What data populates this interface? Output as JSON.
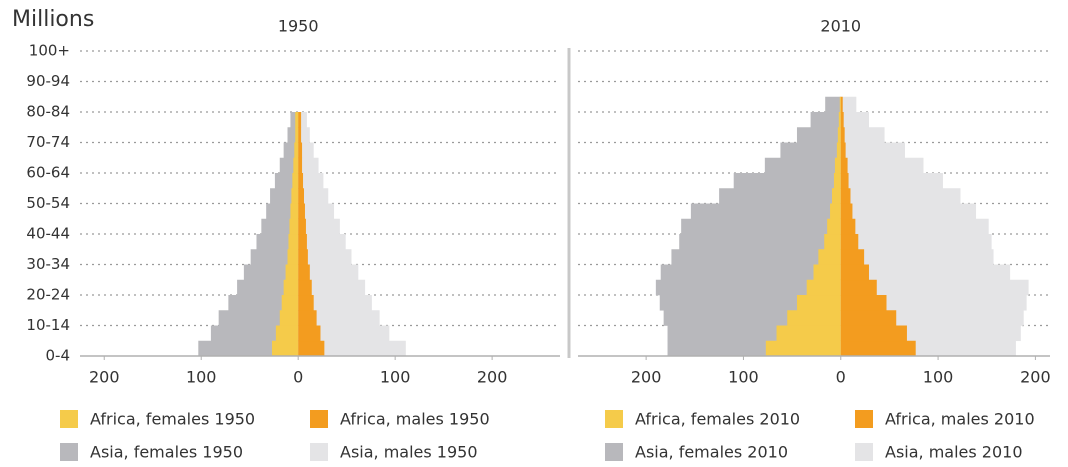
{
  "chart_data": [
    {
      "type": "bar",
      "orientation": "horizontal",
      "title": "1950",
      "unit_label": "Millions",
      "categories": [
        "0-4",
        null,
        "10-14",
        null,
        "20-24",
        null,
        "30-34",
        null,
        "40-44",
        null,
        "50-54",
        null,
        "60-64",
        null,
        "70-74",
        null,
        "80-84",
        null,
        "90-94",
        null,
        "100+"
      ],
      "xlim": [
        -225,
        270
      ],
      "xticks": [
        {
          "value": -200,
          "label": "200"
        },
        {
          "value": -100,
          "label": "100"
        },
        0,
        100,
        200
      ],
      "grid": true,
      "series": [
        {
          "name": "Africa, females 1950",
          "color": "#f5cb4a",
          "values": [
            -27,
            -23,
            -19,
            -17,
            -15,
            -13,
            -11,
            -10,
            -9,
            -8,
            -7,
            -6,
            -5,
            -4,
            -3,
            -3,
            0,
            0,
            0,
            0,
            0
          ]
        },
        {
          "name": "Africa, males 1950",
          "color": "#f39c1f",
          "values": [
            27,
            23,
            19,
            16,
            14,
            12,
            10,
            9,
            8,
            7,
            6,
            5,
            4,
            4,
            3,
            3,
            0,
            0,
            0,
            0,
            0
          ]
        },
        {
          "name": "Asia, females 1950",
          "color": "#b8b8bc",
          "values": [
            -103,
            -90,
            -82,
            -72,
            -63,
            -56,
            -49,
            -43,
            -38,
            -33,
            -29,
            -24,
            -19,
            -15,
            -11,
            -8,
            0,
            0,
            0,
            0,
            0
          ]
        },
        {
          "name": "Asia, males 1950",
          "color": "#e4e4e6",
          "values": [
            111,
            94,
            84,
            76,
            69,
            62,
            55,
            49,
            43,
            37,
            31,
            26,
            21,
            16,
            12,
            9,
            0,
            0,
            0,
            0,
            0
          ]
        }
      ]
    },
    {
      "type": "bar",
      "orientation": "horizontal",
      "title": "2010",
      "xlim": [
        -270,
        215
      ],
      "xticks": [
        {
          "value": -200,
          "label": "200"
        },
        {
          "value": -100,
          "label": "100"
        },
        0,
        100,
        200
      ],
      "grid": true,
      "series": [
        {
          "name": "Africa, females 2010",
          "color": "#f5cb4a",
          "values": [
            -77,
            -66,
            -55,
            -45,
            -35,
            -28,
            -23,
            -17,
            -14,
            -11,
            -9,
            -7,
            -6,
            -4,
            -3,
            -2,
            -1,
            0,
            0,
            0,
            0
          ]
        },
        {
          "name": "Africa, males 2010",
          "color": "#f39c1f",
          "values": [
            77,
            68,
            57,
            47,
            37,
            29,
            24,
            18,
            15,
            12,
            10,
            8,
            7,
            5,
            4,
            3,
            2,
            0,
            0,
            0,
            0
          ]
        },
        {
          "name": "Asia, females 2010",
          "color": "#b8b8bc",
          "values": [
            -178,
            -178,
            -182,
            -186,
            -190,
            -185,
            -174,
            -166,
            -164,
            -154,
            -125,
            -110,
            -78,
            -62,
            -45,
            -31,
            -16,
            0,
            0,
            0,
            0
          ]
        },
        {
          "name": "Asia, males 2010",
          "color": "#e4e4e6",
          "values": [
            180,
            185,
            188,
            191,
            193,
            174,
            157,
            155,
            152,
            139,
            123,
            105,
            85,
            66,
            45,
            29,
            16,
            0,
            0,
            0,
            0
          ]
        }
      ]
    }
  ]
}
